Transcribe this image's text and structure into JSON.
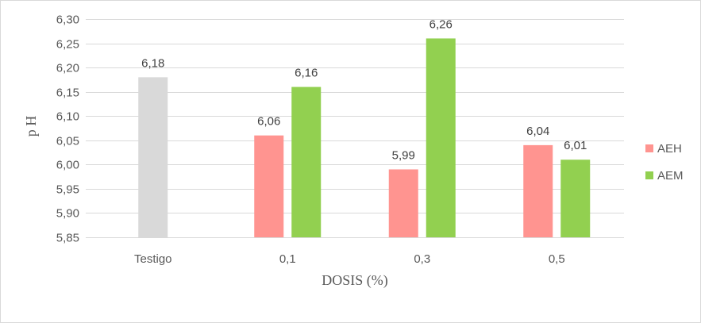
{
  "chart_data": {
    "type": "bar",
    "title": "",
    "xlabel": "DOSIS (%)",
    "ylabel": "p H",
    "ylim": [
      5.85,
      6.3
    ],
    "ytick_step": 0.05,
    "yticks": [
      "5,85",
      "5,90",
      "5,95",
      "6,00",
      "6,05",
      "6,10",
      "6,15",
      "6,20",
      "6,25",
      "6,30"
    ],
    "grid": true,
    "legend_position": "right",
    "categories": [
      "Testigo",
      "0,1",
      "0,3",
      "0,5"
    ],
    "series": [
      {
        "name": "",
        "color": "#d9d9d9",
        "values": [
          6.18,
          null,
          null,
          null
        ],
        "labels": [
          "6,18",
          "",
          "",
          ""
        ]
      },
      {
        "name": "AEH",
        "color": "#ff9490",
        "values": [
          null,
          6.06,
          5.99,
          6.04
        ],
        "labels": [
          "",
          "6,06",
          "5,99",
          "6,04"
        ]
      },
      {
        "name": "AEM",
        "color": "#92d050",
        "values": [
          null,
          6.16,
          6.26,
          6.01
        ],
        "labels": [
          "",
          "6,16",
          "6,26",
          "6,01"
        ]
      }
    ],
    "legend": [
      {
        "name": "AEH",
        "color": "#ff9490"
      },
      {
        "name": "AEM",
        "color": "#92d050"
      }
    ]
  }
}
